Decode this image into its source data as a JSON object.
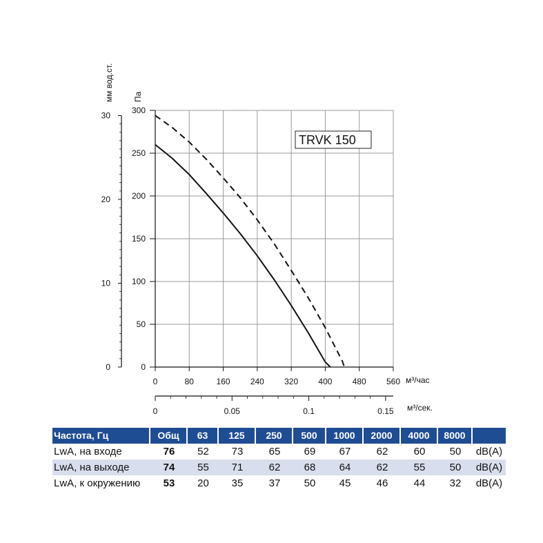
{
  "chart_data": {
    "type": "line",
    "title": "TRVK 150",
    "xlabel": "м³/час",
    "x2label": "м³/сек.",
    "ylabel": "Па",
    "y2label": "мм вод.ст.",
    "xlim": [
      0,
      560
    ],
    "ylim": [
      0,
      300
    ],
    "x_ticks": [
      "0",
      "80",
      "160",
      "240",
      "320",
      "400",
      "480",
      "560"
    ],
    "y_ticks": [
      "0",
      "50",
      "100",
      "150",
      "200",
      "250",
      "300"
    ],
    "x2_ticks": [
      "0",
      "0.05",
      "0.1",
      "0.15"
    ],
    "y2_ticks": [
      "0",
      "10",
      "20",
      "30"
    ],
    "grid": true,
    "series": [
      {
        "style": "solid",
        "x": [
          0,
          40,
          80,
          120,
          160,
          200,
          240,
          280,
          320,
          360,
          400,
          412
        ],
        "y": [
          260,
          244,
          225,
          203,
          180,
          156,
          130,
          102,
          72,
          40,
          6,
          0
        ]
      },
      {
        "style": "dashed",
        "x": [
          0,
          40,
          80,
          120,
          160,
          200,
          240,
          280,
          320,
          360,
          400,
          440,
          445
        ],
        "y": [
          294,
          280,
          263,
          243,
          221,
          198,
          172,
          144,
          113,
          81,
          46,
          7,
          0
        ]
      }
    ]
  },
  "table": {
    "headers": [
      "Частота, Гц",
      "Общ",
      "63",
      "125",
      "250",
      "500",
      "1000",
      "2000",
      "4000",
      "8000",
      ""
    ],
    "rows": [
      {
        "label": "LwA, на входе",
        "total": "76",
        "values": [
          "52",
          "73",
          "65",
          "69",
          "67",
          "62",
          "60",
          "50"
        ],
        "unit": "dB(A)"
      },
      {
        "label": "LwA, на выходе",
        "total": "74",
        "values": [
          "55",
          "71",
          "62",
          "68",
          "64",
          "62",
          "55",
          "50"
        ],
        "unit": "dB(A)"
      },
      {
        "label": "LwA, к окружению",
        "total": "53",
        "values": [
          "20",
          "35",
          "37",
          "50",
          "45",
          "46",
          "44",
          "32"
        ],
        "unit": "dB(A)"
      }
    ]
  }
}
